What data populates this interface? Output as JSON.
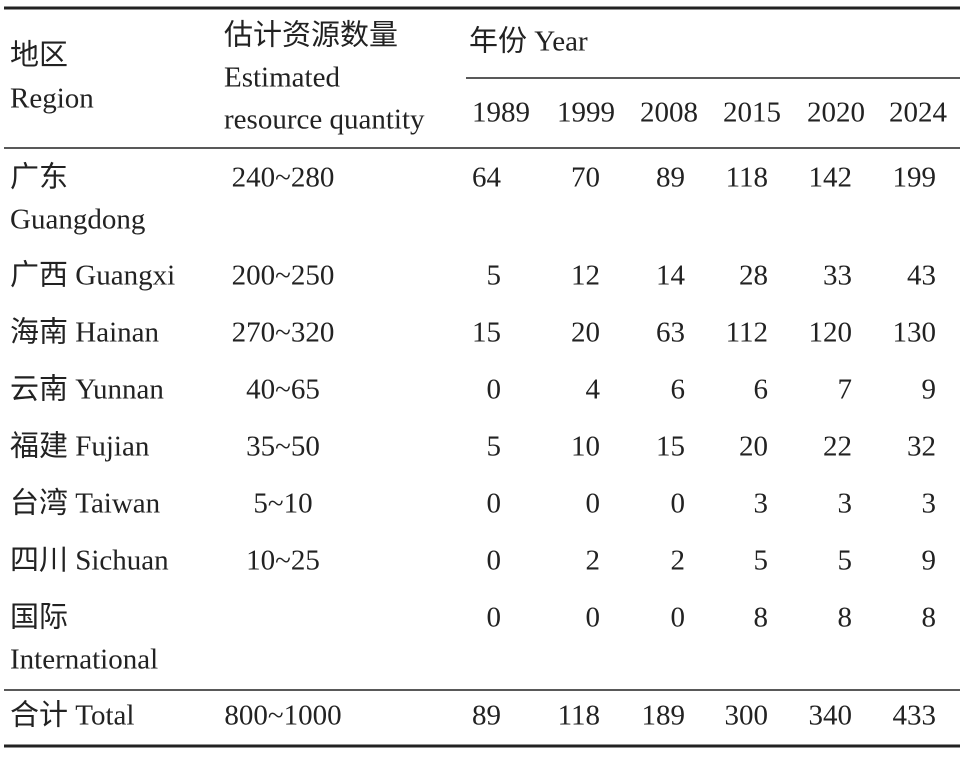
{
  "header": {
    "region": [
      "地区",
      "Region"
    ],
    "estimate": [
      "估计资源数量",
      "Estimated",
      "resource quantity"
    ],
    "year_group": "年份 Year",
    "years": [
      "1989",
      "1999",
      "2008",
      "2015",
      "2020",
      "2024"
    ]
  },
  "rows": [
    {
      "region": [
        "广东",
        "Guangdong"
      ],
      "estimate": "240~280",
      "values": [
        "64",
        "70",
        "89",
        "118",
        "142",
        "199"
      ]
    },
    {
      "region": [
        "广西 Guangxi"
      ],
      "estimate": "200~250",
      "values": [
        "5",
        "12",
        "14",
        "28",
        "33",
        "43"
      ]
    },
    {
      "region": [
        "海南 Hainan"
      ],
      "estimate": "270~320",
      "values": [
        "15",
        "20",
        "63",
        "112",
        "120",
        "130"
      ]
    },
    {
      "region": [
        "云南 Yunnan"
      ],
      "estimate": "40~65",
      "values": [
        "0",
        "4",
        "6",
        "6",
        "7",
        "9"
      ]
    },
    {
      "region": [
        "福建 Fujian"
      ],
      "estimate": "35~50",
      "values": [
        "5",
        "10",
        "15",
        "20",
        "22",
        "32"
      ]
    },
    {
      "region": [
        "台湾 Taiwan"
      ],
      "estimate": "5~10",
      "values": [
        "0",
        "0",
        "0",
        "3",
        "3",
        "3"
      ]
    },
    {
      "region": [
        "四川 Sichuan"
      ],
      "estimate": "10~25",
      "values": [
        "0",
        "2",
        "2",
        "5",
        "5",
        "9"
      ]
    },
    {
      "region": [
        "国际",
        "International"
      ],
      "estimate": "",
      "values": [
        "0",
        "0",
        "0",
        "8",
        "8",
        "8"
      ]
    }
  ],
  "total": {
    "region": [
      "合计 Total"
    ],
    "estimate": "800~1000",
    "values": [
      "89",
      "118",
      "189",
      "300",
      "340",
      "433"
    ]
  }
}
